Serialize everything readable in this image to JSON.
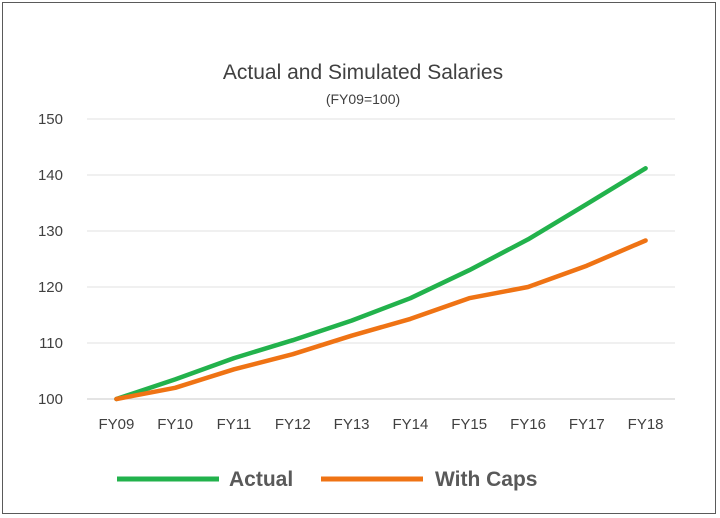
{
  "chart_data": {
    "type": "line",
    "title": "Actual and Simulated Salaries",
    "subtitle": "(FY09=100)",
    "xlabel": "",
    "ylabel": "",
    "x": [
      "FY09",
      "FY10",
      "FY11",
      "FY12",
      "FY13",
      "FY14",
      "FY15",
      "FY16",
      "FY17",
      "FY18"
    ],
    "ylim": [
      100,
      150
    ],
    "yticks": [
      100,
      110,
      120,
      130,
      140,
      150
    ],
    "grid": true,
    "legend": "bottom",
    "series": [
      {
        "name": "Actual",
        "color": "#22b24c",
        "values": [
          100,
          103.5,
          107.3,
          110.5,
          114,
          118,
          123,
          128.5,
          134.8,
          141.2
        ]
      },
      {
        "name": "With Caps",
        "color": "#ef7314",
        "values": [
          100,
          102,
          105.3,
          108,
          111.3,
          114.3,
          118,
          120,
          123.8,
          128.3
        ]
      }
    ]
  }
}
